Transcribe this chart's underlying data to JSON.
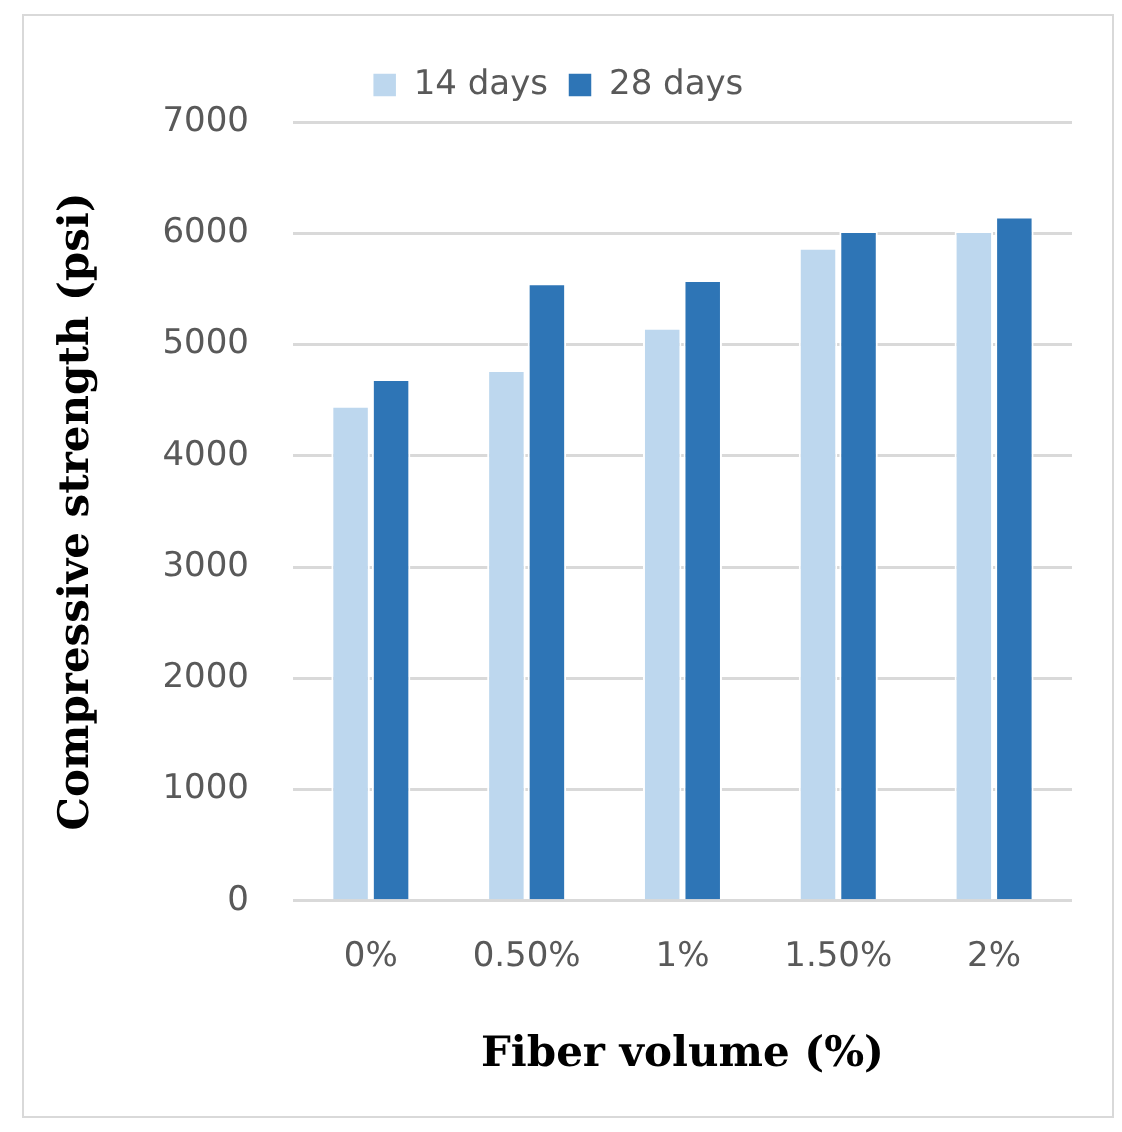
{
  "chart_data": {
    "type": "bar",
    "xlabel": "Fiber volume (%)",
    "ylabel": "Compressive strength (psi)",
    "categories": [
      "0%",
      "0.50%",
      "1%",
      "1.50%",
      "2%"
    ],
    "series": [
      {
        "name": "14 days",
        "color": "#bdd7ee",
        "values": [
          4450,
          4770,
          5150,
          5870,
          6020
        ]
      },
      {
        "name": "28 days",
        "color": "#2e75b6",
        "values": [
          4690,
          5550,
          5580,
          6020,
          6150
        ]
      }
    ],
    "ylim": [
      0,
      7000
    ],
    "yticks": [
      0,
      1000,
      2000,
      3000,
      4000,
      5000,
      6000,
      7000
    ],
    "grid": "y",
    "legend": "top"
  }
}
